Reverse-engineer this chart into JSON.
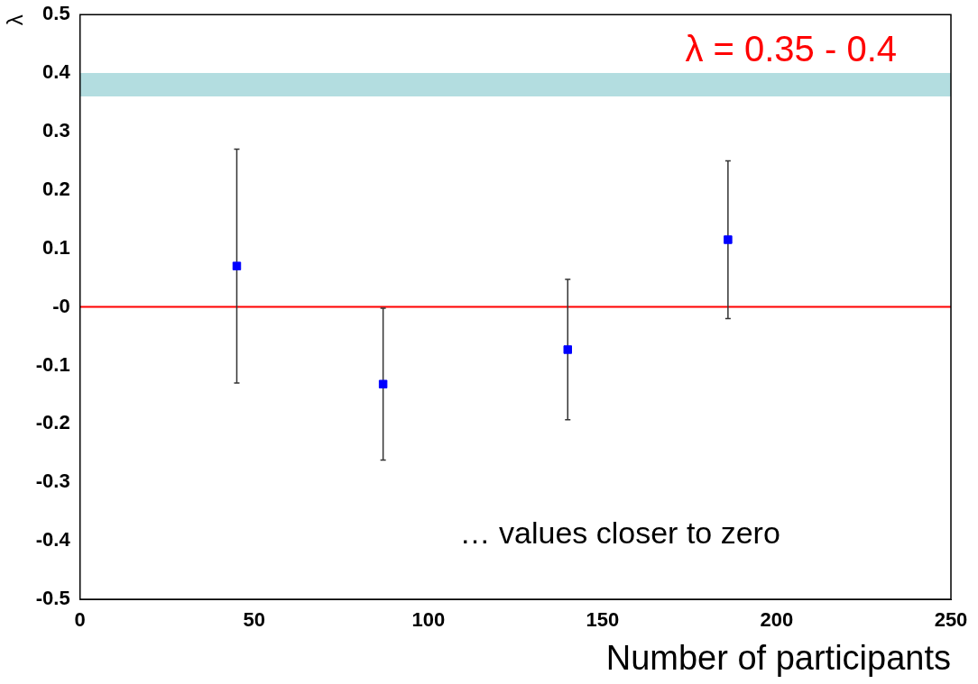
{
  "chart_data": {
    "type": "scatter",
    "xlabel": "Number of participants",
    "ylabel": "λ",
    "series": [
      {
        "color": "#0000ff",
        "x": [
          45,
          87,
          140,
          186
        ],
        "values": [
          0.07,
          -0.132,
          -0.073,
          0.115
        ],
        "errors": [
          0.2,
          0.13,
          0.12,
          0.135
        ]
      }
    ],
    "xlim": [
      0,
      250
    ],
    "xticks": [
      0,
      50,
      100,
      150,
      200,
      250
    ],
    "ylim": [
      -0.5,
      0.5
    ],
    "yticks": [
      -0.5,
      -0.4,
      -0.3,
      -0.2,
      -0.1,
      {
        "value": 0,
        "label": "-0"
      },
      0.1,
      0.2,
      0.3,
      0.4,
      0.5
    ],
    "ref_lines": [
      {
        "axis": "y",
        "value": 0,
        "color": "#ff0000"
      }
    ],
    "bands": [
      {
        "axis": "y",
        "from": 0.36,
        "to": 0.4,
        "label": "λ = 0.35 - 0.4",
        "color": "#b3dde0"
      }
    ],
    "annotations": [
      "… values closer to zero"
    ],
    "marker": "square",
    "grid": false,
    "legend": false
  }
}
